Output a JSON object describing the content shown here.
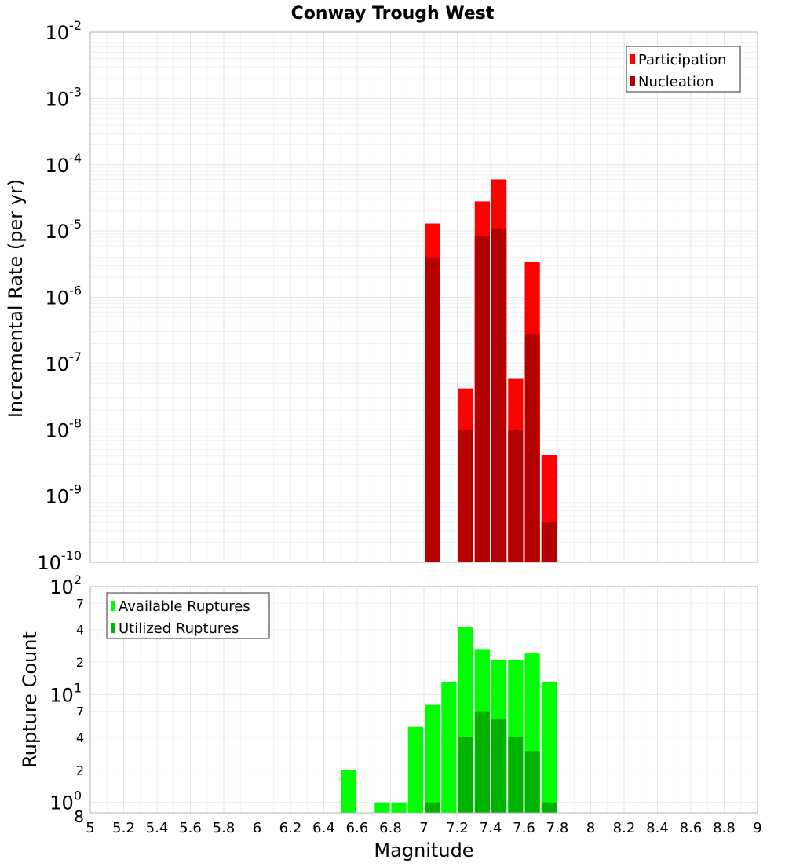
{
  "title": "Conway Trough West",
  "chart_data": [
    {
      "type": "bar",
      "title": "Conway Trough West",
      "xlabel": "",
      "ylabel": "Incremental Rate (per yr)",
      "yscale": "log",
      "ylim": [
        1e-10,
        0.01
      ],
      "xlim": [
        5,
        9
      ],
      "grid": true,
      "legend_position": "top-right",
      "y_tick_labels": [
        {
          "value": 1e-10,
          "base": "10",
          "exp": "-10"
        },
        {
          "value": 1e-09,
          "base": "10",
          "exp": "-9"
        },
        {
          "value": 1e-08,
          "base": "10",
          "exp": "-8"
        },
        {
          "value": 1e-07,
          "base": "10",
          "exp": "-7"
        },
        {
          "value": 1e-06,
          "base": "10",
          "exp": "-6"
        },
        {
          "value": 1e-05,
          "base": "10",
          "exp": "-5"
        },
        {
          "value": 0.0001,
          "base": "10",
          "exp": "-4"
        },
        {
          "value": 0.001,
          "base": "10",
          "exp": "-3"
        },
        {
          "value": 0.01,
          "base": "10",
          "exp": "-2"
        }
      ],
      "series": [
        {
          "name": "Participation",
          "color": "#ff0000",
          "points": [
            {
              "x": 7.05,
              "y": 1.3e-05
            },
            {
              "x": 7.25,
              "y": 4.2e-08
            },
            {
              "x": 7.35,
              "y": 2.8e-05
            },
            {
              "x": 7.45,
              "y": 6e-05
            },
            {
              "x": 7.55,
              "y": 6e-08
            },
            {
              "x": 7.65,
              "y": 3.4e-06
            },
            {
              "x": 7.75,
              "y": 4.2e-09
            }
          ]
        },
        {
          "name": "Nucleation",
          "color": "#b30000",
          "points": [
            {
              "x": 7.05,
              "y": 4e-06
            },
            {
              "x": 7.25,
              "y": 1e-08
            },
            {
              "x": 7.35,
              "y": 8.5e-06
            },
            {
              "x": 7.45,
              "y": 1.1e-05
            },
            {
              "x": 7.55,
              "y": 1e-08
            },
            {
              "x": 7.65,
              "y": 2.8e-07
            },
            {
              "x": 7.75,
              "y": 4e-10
            }
          ]
        }
      ]
    },
    {
      "type": "bar",
      "title": "",
      "xlabel": "Magnitude",
      "ylabel": "Rupture Count",
      "yscale": "log",
      "ylim": [
        0.8,
        100
      ],
      "xlim": [
        5,
        9
      ],
      "grid": true,
      "legend_position": "top-left",
      "x_tick_labels": [
        "5",
        "5.2",
        "5.4",
        "5.6",
        "5.8",
        "6",
        "6.2",
        "6.4",
        "6.6",
        "6.8",
        "7",
        "7.2",
        "7.4",
        "7.6",
        "7.8",
        "8",
        "8.2",
        "8.4",
        "8.6",
        "8.8",
        "9"
      ],
      "y_major_labels": [
        {
          "value": 1,
          "base": "10",
          "exp": "0"
        },
        {
          "value": 10,
          "base": "10",
          "exp": "1"
        },
        {
          "value": 100,
          "base": "10",
          "exp": "2"
        }
      ],
      "y_minor_labels": [
        {
          "value": 0.8,
          "label": "8"
        },
        {
          "value": 2,
          "label": "2"
        },
        {
          "value": 4,
          "label": "4"
        },
        {
          "value": 7,
          "label": "7"
        },
        {
          "value": 20,
          "label": "2"
        },
        {
          "value": 40,
          "label": "4"
        },
        {
          "value": 70,
          "label": "7"
        }
      ],
      "series": [
        {
          "name": "Available Ruptures",
          "color": "#00ff00",
          "points": [
            {
              "x": 6.55,
              "y": 2
            },
            {
              "x": 6.75,
              "y": 1
            },
            {
              "x": 6.85,
              "y": 1
            },
            {
              "x": 6.95,
              "y": 5
            },
            {
              "x": 7.05,
              "y": 8
            },
            {
              "x": 7.15,
              "y": 13
            },
            {
              "x": 7.25,
              "y": 42
            },
            {
              "x": 7.35,
              "y": 26
            },
            {
              "x": 7.45,
              "y": 21
            },
            {
              "x": 7.55,
              "y": 21
            },
            {
              "x": 7.65,
              "y": 24
            },
            {
              "x": 7.75,
              "y": 13
            }
          ]
        },
        {
          "name": "Utilized Ruptures",
          "color": "#00b300",
          "points": [
            {
              "x": 7.05,
              "y": 1
            },
            {
              "x": 7.25,
              "y": 4
            },
            {
              "x": 7.35,
              "y": 7
            },
            {
              "x": 7.45,
              "y": 6
            },
            {
              "x": 7.55,
              "y": 4
            },
            {
              "x": 7.65,
              "y": 3
            },
            {
              "x": 7.75,
              "y": 1
            }
          ]
        }
      ]
    }
  ]
}
